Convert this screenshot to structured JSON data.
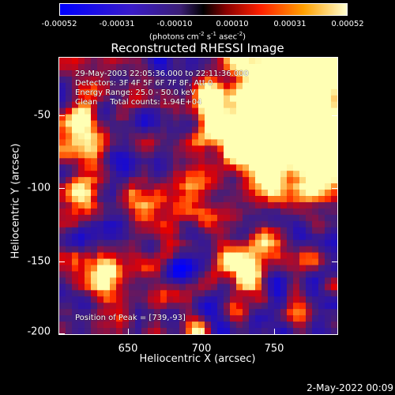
{
  "colorbar": {
    "ticks": [
      "-0.00052",
      "-0.00031",
      "-0.00010",
      "0.00010",
      "0.00031",
      "0.00052"
    ],
    "units_text": "(photons cm",
    "units_sup1": "-2",
    "units_mid": " s",
    "units_sup2": "-1",
    "units_end": " asec",
    "units_sup3": "-2",
    "units_close": ")"
  },
  "title": "Reconstructed RHESSI Image",
  "info": {
    "line1": "29-May-2003 22:05:36.000 to 22:11:36.000",
    "line2": "Detectors: 3F 4F 5F 6F 7F 8F, Att 0",
    "line3": "Energy Range: 25.0 - 50.0 keV",
    "line4": "Clean     Total counts: 1.94E+04",
    "peak": "Position of Peak = [739,-93]"
  },
  "axes": {
    "xlabel": "Heliocentric X (arcsec)",
    "ylabel": "Heliocentric Y (arcsec)",
    "xticks": [
      "650",
      "700",
      "750"
    ],
    "yticks": [
      "-50",
      "-100",
      "-150",
      "-200"
    ]
  },
  "footer_date": "2-May-2022 00:09"
}
